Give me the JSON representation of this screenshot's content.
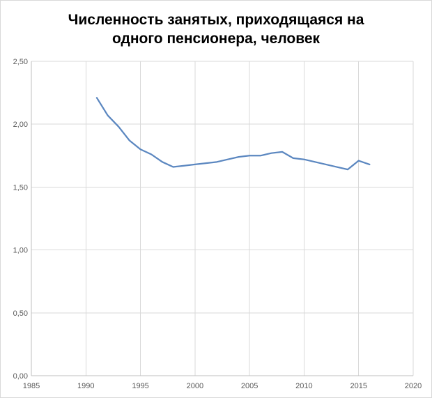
{
  "chart_data": {
    "type": "line",
    "title_lines": [
      "Численность занятых, приходящаяся на",
      "одного пенсионера, человек"
    ],
    "xlabel": "",
    "ylabel": "",
    "xlim": [
      1985,
      2020
    ],
    "ylim": [
      0,
      2.5
    ],
    "x_ticks": [
      1985,
      1990,
      1995,
      2000,
      2005,
      2010,
      2015,
      2020
    ],
    "y_ticks": [
      0,
      0.5,
      1.0,
      1.5,
      2.0,
      2.5
    ],
    "x_tick_labels": [
      "1985",
      "1990",
      "1995",
      "2000",
      "2005",
      "2010",
      "2015",
      "2020"
    ],
    "y_tick_labels": [
      "0,00",
      "0,50",
      "1,00",
      "1,50",
      "2,00",
      "2,50"
    ],
    "grid": true,
    "legend": "none",
    "series": [
      {
        "color": "#5b87c0",
        "x": [
          1991,
          1992,
          1993,
          1994,
          1995,
          1996,
          1997,
          1998,
          1999,
          2000,
          2001,
          2002,
          2003,
          2004,
          2005,
          2006,
          2007,
          2008,
          2009,
          2010,
          2011,
          2012,
          2013,
          2014,
          2015,
          2016
        ],
        "y": [
          2.21,
          2.07,
          1.98,
          1.87,
          1.8,
          1.76,
          1.7,
          1.66,
          1.67,
          1.68,
          1.69,
          1.7,
          1.72,
          1.74,
          1.75,
          1.75,
          1.77,
          1.78,
          1.73,
          1.72,
          1.7,
          1.68,
          1.66,
          1.64,
          1.71,
          1.68
        ]
      }
    ]
  }
}
